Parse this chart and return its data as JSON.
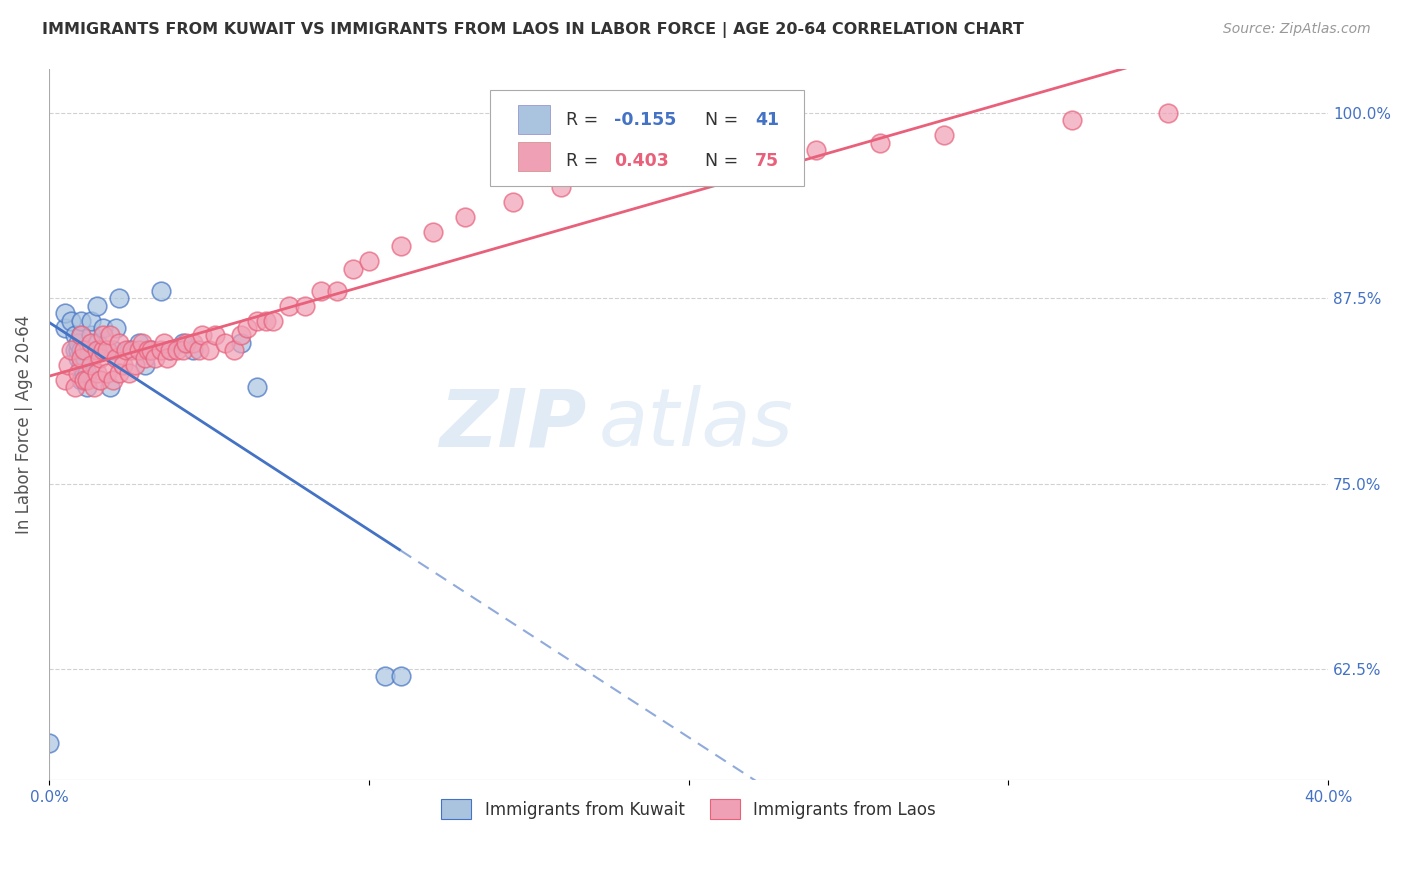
{
  "title": "IMMIGRANTS FROM KUWAIT VS IMMIGRANTS FROM LAOS IN LABOR FORCE | AGE 20-64 CORRELATION CHART",
  "source": "Source: ZipAtlas.com",
  "ylabel": "In Labor Force | Age 20-64",
  "xlim": [
    0.0,
    0.4
  ],
  "ylim": [
    0.55,
    1.03
  ],
  "xticks": [
    0.0,
    0.1,
    0.2,
    0.3,
    0.4
  ],
  "xticklabels": [
    "0.0%",
    "",
    "",
    "",
    "40.0%"
  ],
  "yticks": [
    0.625,
    0.75,
    0.875,
    1.0
  ],
  "yticklabels": [
    "62.5%",
    "75.0%",
    "87.5%",
    "100.0%"
  ],
  "legend_r_kuwait": "-0.155",
  "legend_n_kuwait": "41",
  "legend_r_laos": "0.403",
  "legend_n_laos": "75",
  "kuwait_color": "#aac4e0",
  "laos_color": "#f0a0b5",
  "kuwait_line_color": "#4472c4",
  "laos_line_color": "#e8607a",
  "kuwait_scatter_x": [
    0.0,
    0.005,
    0.005,
    0.007,
    0.008,
    0.008,
    0.009,
    0.009,
    0.009,
    0.01,
    0.01,
    0.01,
    0.01,
    0.01,
    0.011,
    0.011,
    0.012,
    0.012,
    0.013,
    0.013,
    0.015,
    0.015,
    0.016,
    0.017,
    0.018,
    0.019,
    0.02,
    0.021,
    0.022,
    0.025,
    0.028,
    0.03,
    0.032,
    0.035,
    0.038,
    0.042,
    0.045,
    0.06,
    0.065,
    0.105,
    0.11
  ],
  "kuwait_scatter_y": [
    0.575,
    0.855,
    0.865,
    0.86,
    0.84,
    0.85,
    0.835,
    0.84,
    0.845,
    0.82,
    0.83,
    0.84,
    0.85,
    0.86,
    0.825,
    0.835,
    0.815,
    0.825,
    0.85,
    0.86,
    0.845,
    0.87,
    0.84,
    0.855,
    0.84,
    0.815,
    0.84,
    0.855,
    0.875,
    0.84,
    0.845,
    0.83,
    0.84,
    0.88,
    0.84,
    0.845,
    0.84,
    0.845,
    0.815,
    0.62,
    0.62
  ],
  "laos_scatter_x": [
    0.005,
    0.006,
    0.007,
    0.008,
    0.009,
    0.01,
    0.01,
    0.011,
    0.011,
    0.012,
    0.013,
    0.013,
    0.014,
    0.015,
    0.015,
    0.016,
    0.016,
    0.017,
    0.017,
    0.018,
    0.018,
    0.019,
    0.02,
    0.021,
    0.022,
    0.022,
    0.023,
    0.024,
    0.025,
    0.026,
    0.027,
    0.028,
    0.029,
    0.03,
    0.031,
    0.032,
    0.033,
    0.035,
    0.036,
    0.037,
    0.038,
    0.04,
    0.042,
    0.043,
    0.045,
    0.047,
    0.048,
    0.05,
    0.052,
    0.055,
    0.058,
    0.06,
    0.062,
    0.065,
    0.068,
    0.07,
    0.075,
    0.08,
    0.085,
    0.09,
    0.095,
    0.1,
    0.11,
    0.12,
    0.13,
    0.145,
    0.16,
    0.18,
    0.2,
    0.22,
    0.24,
    0.26,
    0.28,
    0.32,
    0.35
  ],
  "laos_scatter_y": [
    0.82,
    0.83,
    0.84,
    0.815,
    0.825,
    0.835,
    0.85,
    0.82,
    0.84,
    0.82,
    0.83,
    0.845,
    0.815,
    0.825,
    0.84,
    0.82,
    0.835,
    0.84,
    0.85,
    0.825,
    0.84,
    0.85,
    0.82,
    0.835,
    0.825,
    0.845,
    0.83,
    0.84,
    0.825,
    0.84,
    0.83,
    0.84,
    0.845,
    0.835,
    0.84,
    0.84,
    0.835,
    0.84,
    0.845,
    0.835,
    0.84,
    0.84,
    0.84,
    0.845,
    0.845,
    0.84,
    0.85,
    0.84,
    0.85,
    0.845,
    0.84,
    0.85,
    0.855,
    0.86,
    0.86,
    0.86,
    0.87,
    0.87,
    0.88,
    0.88,
    0.895,
    0.9,
    0.91,
    0.92,
    0.93,
    0.94,
    0.95,
    0.96,
    0.965,
    0.97,
    0.975,
    0.98,
    0.985,
    0.995,
    1.0
  ],
  "watermark_zip": "ZIP",
  "watermark_atlas": "atlas",
  "background_color": "#ffffff",
  "grid_color": "#cccccc",
  "tick_color": "#4472c4",
  "title_color": "#333333",
  "ylabel_color": "#555555"
}
